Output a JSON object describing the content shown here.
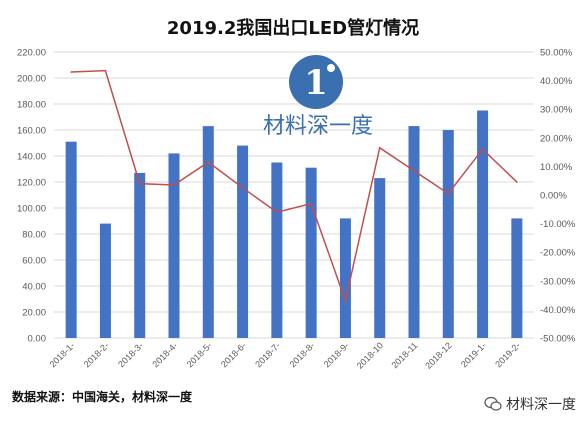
{
  "watermark": {
    "text": "材料深一度",
    "logo_letter": "1"
  },
  "source": "数据来源：中国海关，材料深一度",
  "bottom_watermark": "材料深一度",
  "colors": {
    "bar": "#4472c4",
    "line": "#c0504d",
    "logo": "#3a6fb0"
  },
  "chart_data": {
    "type": "bar",
    "title": "2019.2我国出口LED管灯情况",
    "categories": [
      "2018-1-",
      "2018-2-",
      "2018-3-",
      "2018-4-",
      "2018-5-",
      "2018-6-",
      "2018-7-",
      "2018-8-",
      "2018-9-",
      "2018-10",
      "2018-11",
      "2018-12",
      "2019-1-",
      "2019-2-"
    ],
    "series": [
      {
        "axis": "left",
        "type": "bar",
        "values": [
          151,
          88,
          127,
          142,
          163,
          148,
          135,
          131,
          92,
          123,
          163,
          160,
          175,
          92
        ]
      },
      {
        "axis": "right",
        "type": "line",
        "values": [
          43,
          43.5,
          4,
          3.5,
          11.5,
          2.5,
          -6,
          -3,
          -37,
          16.5,
          8.5,
          0.5,
          16,
          4.5
        ]
      }
    ],
    "y_left": {
      "min": 0,
      "max": 220,
      "step": 20,
      "ticks": [
        "0.00",
        "20.00",
        "40.00",
        "60.00",
        "80.00",
        "100.00",
        "120.00",
        "140.00",
        "160.00",
        "180.00",
        "200.00",
        "220.00"
      ]
    },
    "y_right": {
      "min": -50,
      "max": 50,
      "step": 10,
      "ticks": [
        "-50.00%",
        "-40.00%",
        "-30.00%",
        "-20.00%",
        "-10.00%",
        "0.00%",
        "10.00%",
        "20.00%",
        "30.00%",
        "40.00%",
        "50.00%"
      ]
    },
    "grid": true,
    "legend": "none"
  }
}
